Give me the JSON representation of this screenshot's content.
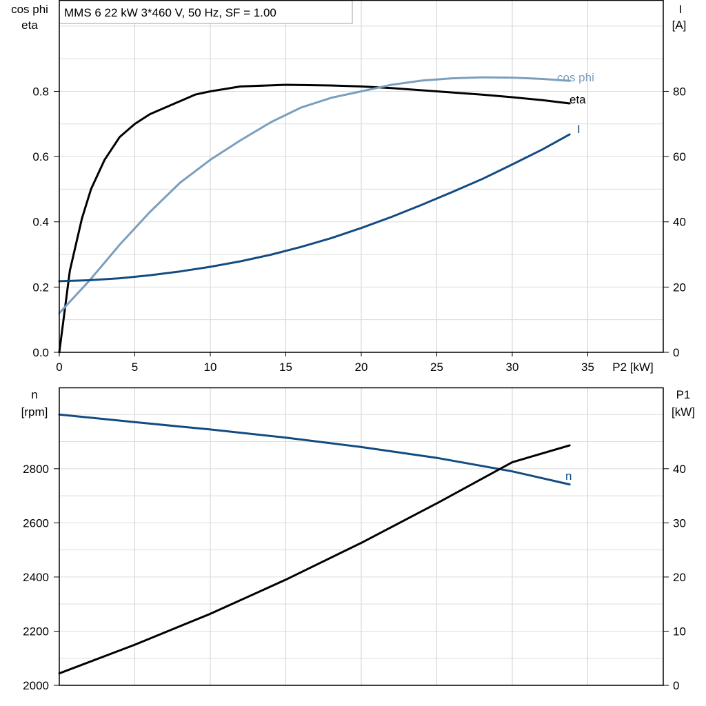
{
  "header": {
    "title": "MMS 6   22 kW   3*460 V, 50 Hz, SF = 1.00"
  },
  "chart_data": [
    {
      "type": "line",
      "title": "MMS 6   22 kW   3*460 V, 50 Hz, SF = 1.00",
      "xlabel": "P2 [kW]",
      "ylabel_left": [
        "cos phi",
        "eta"
      ],
      "ylabel_right": [
        "I",
        "[A]"
      ],
      "xlim": [
        0,
        40
      ],
      "ylim_left": [
        0,
        1.08
      ],
      "ylim_right": [
        0,
        108
      ],
      "xticks": [
        0,
        5,
        10,
        15,
        20,
        25,
        30,
        35
      ],
      "yticks_left": [
        0.0,
        0.2,
        0.4,
        0.6,
        0.8
      ],
      "yticks_right": [
        0,
        20,
        40,
        60,
        80
      ],
      "grid": true,
      "series": [
        {
          "name": "eta",
          "axis": "left",
          "color": "#000000",
          "x": [
            0,
            0.7,
            1.5,
            2.1,
            3,
            4,
            5,
            6,
            7,
            8,
            9,
            10,
            12,
            15,
            18,
            20,
            22,
            25,
            28,
            30,
            32,
            33.8
          ],
          "y": [
            0,
            0.25,
            0.41,
            0.5,
            0.59,
            0.66,
            0.7,
            0.73,
            0.75,
            0.77,
            0.79,
            0.8,
            0.815,
            0.82,
            0.818,
            0.815,
            0.81,
            0.8,
            0.79,
            0.782,
            0.773,
            0.763
          ]
        },
        {
          "name": "cos phi",
          "axis": "left",
          "color": "#7a9fbe",
          "x": [
            0,
            2,
            4,
            6,
            8,
            10,
            12,
            14,
            16,
            18,
            20,
            22,
            24,
            26,
            28,
            30,
            32,
            33.8
          ],
          "y": [
            0.12,
            0.22,
            0.33,
            0.43,
            0.52,
            0.59,
            0.65,
            0.705,
            0.75,
            0.78,
            0.8,
            0.82,
            0.833,
            0.84,
            0.843,
            0.842,
            0.838,
            0.832
          ]
        },
        {
          "name": "I",
          "axis": "right",
          "color": "#124b82",
          "x": [
            0,
            2,
            4,
            6,
            8,
            10,
            12,
            14,
            16,
            18,
            20,
            22,
            24,
            26,
            28,
            30,
            32,
            33.8
          ],
          "y": [
            21.8,
            22.1,
            22.7,
            23.6,
            24.8,
            26.2,
            27.9,
            29.9,
            32.3,
            35.0,
            38.1,
            41.5,
            45.2,
            49.1,
            53.1,
            57.6,
            62.2,
            66.8
          ]
        }
      ],
      "curve_labels": [
        "cos phi",
        "eta",
        "I"
      ]
    },
    {
      "type": "line",
      "xlim": [
        0,
        40
      ],
      "ylabel_left": [
        "n",
        "[rpm]"
      ],
      "ylabel_right": [
        "P1",
        "[kW]"
      ],
      "ylim_left": [
        2000,
        3100
      ],
      "ylim_right": [
        0,
        55
      ],
      "yticks_left": [
        2000,
        2200,
        2400,
        2600,
        2800
      ],
      "yticks_right": [
        0,
        10,
        20,
        30,
        40
      ],
      "grid": true,
      "series": [
        {
          "name": "n",
          "axis": "left",
          "color": "#124b82",
          "x": [
            0,
            5,
            10,
            15,
            20,
            25,
            30,
            33.8
          ],
          "y": [
            3000,
            2972,
            2945,
            2915,
            2880,
            2840,
            2790,
            2742
          ]
        },
        {
          "name": "P1",
          "axis": "right",
          "color": "#000000",
          "x": [
            0,
            5,
            10,
            15,
            20,
            25,
            30,
            33.8
          ],
          "y": [
            2.2,
            7.5,
            13.2,
            19.5,
            26.3,
            33.6,
            41.2,
            44.3
          ]
        }
      ],
      "curve_labels": [
        "n"
      ]
    }
  ]
}
